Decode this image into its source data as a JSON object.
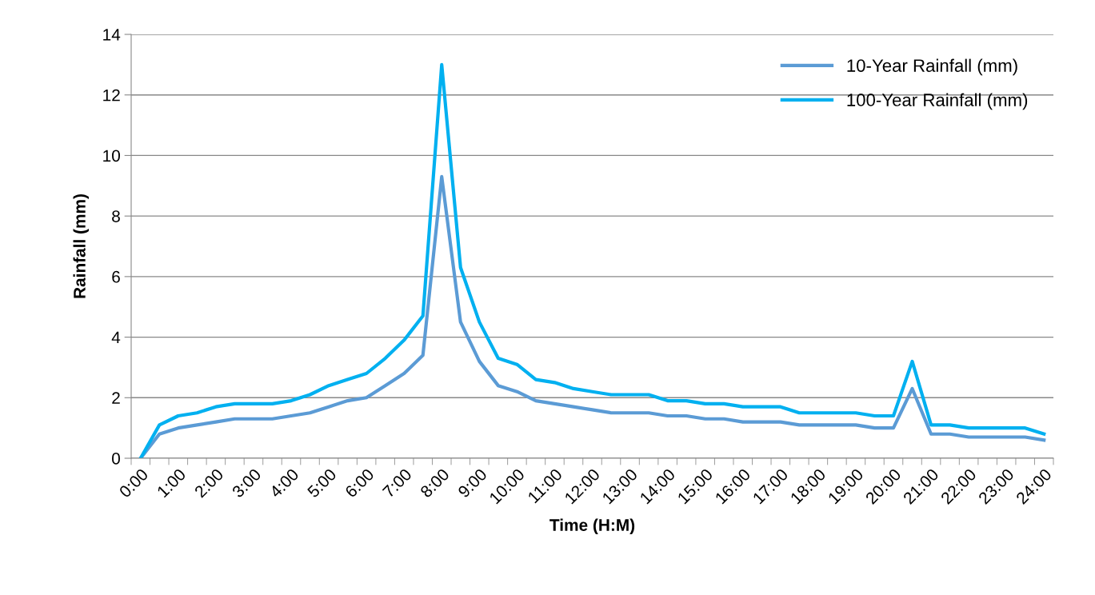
{
  "chart_data": {
    "type": "line",
    "xlabel": "Time (H:M)",
    "ylabel": "Rainfall (mm)",
    "categories": [
      "0:00",
      null,
      "1:00",
      null,
      "2:00",
      null,
      "3:00",
      null,
      "4:00",
      null,
      "5:00",
      null,
      "6:00",
      null,
      "7:00",
      null,
      "8:00",
      null,
      "9:00",
      null,
      "10:00",
      null,
      "11:00",
      null,
      "12:00",
      null,
      "13:00",
      null,
      "14:00",
      null,
      "15:00",
      null,
      "16:00",
      null,
      "17:00",
      null,
      "18:00",
      null,
      "19:00",
      null,
      "20:00",
      null,
      "21:00",
      null,
      "22:00",
      null,
      "23:00",
      null,
      "24:00"
    ],
    "series": [
      {
        "name": "10-Year Rainfall (mm)",
        "color": "#5b9bd5",
        "values": [
          0,
          0.8,
          1.0,
          1.1,
          1.2,
          1.3,
          1.3,
          1.3,
          1.4,
          1.5,
          1.7,
          1.9,
          2.0,
          2.4,
          2.8,
          3.4,
          9.3,
          4.5,
          3.2,
          2.4,
          2.2,
          1.9,
          1.8,
          1.7,
          1.6,
          1.5,
          1.5,
          1.5,
          1.4,
          1.4,
          1.3,
          1.3,
          1.2,
          1.2,
          1.2,
          1.1,
          1.1,
          1.1,
          1.1,
          1.0,
          1.0,
          2.3,
          0.8,
          0.8,
          0.7,
          0.7,
          0.7,
          0.7,
          0.6
        ]
      },
      {
        "name": "100-Year Rainfall (mm)",
        "color": "#00b0f0",
        "values": [
          0,
          1.1,
          1.4,
          1.5,
          1.7,
          1.8,
          1.8,
          1.8,
          1.9,
          2.1,
          2.4,
          2.6,
          2.8,
          3.3,
          3.9,
          4.7,
          13.0,
          6.3,
          4.5,
          3.3,
          3.1,
          2.6,
          2.5,
          2.3,
          2.2,
          2.1,
          2.1,
          2.1,
          1.9,
          1.9,
          1.8,
          1.8,
          1.7,
          1.7,
          1.7,
          1.5,
          1.5,
          1.5,
          1.5,
          1.4,
          1.4,
          3.2,
          1.1,
          1.1,
          1.0,
          1.0,
          1.0,
          1.0,
          0.8
        ]
      }
    ],
    "ylim": [
      0,
      14
    ],
    "yticks": [
      0,
      2,
      4,
      6,
      8,
      10,
      12,
      14
    ],
    "grid": "y",
    "legend": "top right",
    "line_style": "solid",
    "marker": "none"
  }
}
